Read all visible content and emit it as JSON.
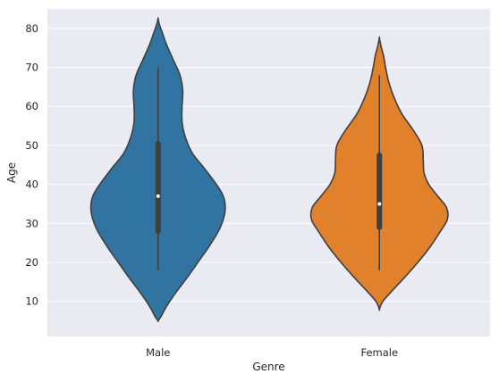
{
  "chart_data": {
    "type": "violin",
    "xlabel": "Genre",
    "ylabel": "Age",
    "ylim": [
      1,
      85
    ],
    "yticks": [
      10,
      20,
      30,
      40,
      50,
      60,
      70,
      80
    ],
    "grid": true,
    "background": "#eaeaf2",
    "categories": [
      "Male",
      "Female"
    ],
    "colors": [
      "#3274a1",
      "#e1812c"
    ],
    "violins": [
      {
        "category": "Male",
        "min": 18,
        "q1": 28,
        "median": 37,
        "q3": 50.5,
        "max": 70,
        "kde_range": [
          5,
          82.5
        ],
        "density": [
          [
            5,
            0.0
          ],
          [
            6,
            0.04
          ],
          [
            8,
            0.1
          ],
          [
            10,
            0.17
          ],
          [
            13,
            0.29
          ],
          [
            16,
            0.42
          ],
          [
            20,
            0.58
          ],
          [
            24,
            0.74
          ],
          [
            28,
            0.88
          ],
          [
            31,
            0.95
          ],
          [
            34,
            0.98
          ],
          [
            37,
            0.95
          ],
          [
            40,
            0.85
          ],
          [
            44,
            0.68
          ],
          [
            48,
            0.5
          ],
          [
            52,
            0.4
          ],
          [
            56,
            0.35
          ],
          [
            60,
            0.35
          ],
          [
            64,
            0.36
          ],
          [
            68,
            0.32
          ],
          [
            72,
            0.22
          ],
          [
            76,
            0.12
          ],
          [
            79,
            0.06
          ],
          [
            81,
            0.02
          ],
          [
            82.5,
            0.0
          ]
        ]
      },
      {
        "category": "Female",
        "min": 18,
        "q1": 29,
        "median": 35,
        "q3": 47.5,
        "max": 68,
        "kde_range": [
          8,
          77.5
        ],
        "density": [
          [
            8,
            0.0
          ],
          [
            10,
            0.05
          ],
          [
            13,
            0.2
          ],
          [
            16,
            0.36
          ],
          [
            20,
            0.56
          ],
          [
            24,
            0.74
          ],
          [
            28,
            0.89
          ],
          [
            31,
            0.99
          ],
          [
            34,
            0.98
          ],
          [
            37,
            0.85
          ],
          [
            40,
            0.72
          ],
          [
            43,
            0.65
          ],
          [
            46,
            0.64
          ],
          [
            50,
            0.62
          ],
          [
            54,
            0.49
          ],
          [
            58,
            0.33
          ],
          [
            62,
            0.22
          ],
          [
            66,
            0.14
          ],
          [
            70,
            0.09
          ],
          [
            73,
            0.06
          ],
          [
            75,
            0.03
          ],
          [
            77.5,
            0.0
          ]
        ]
      }
    ]
  }
}
